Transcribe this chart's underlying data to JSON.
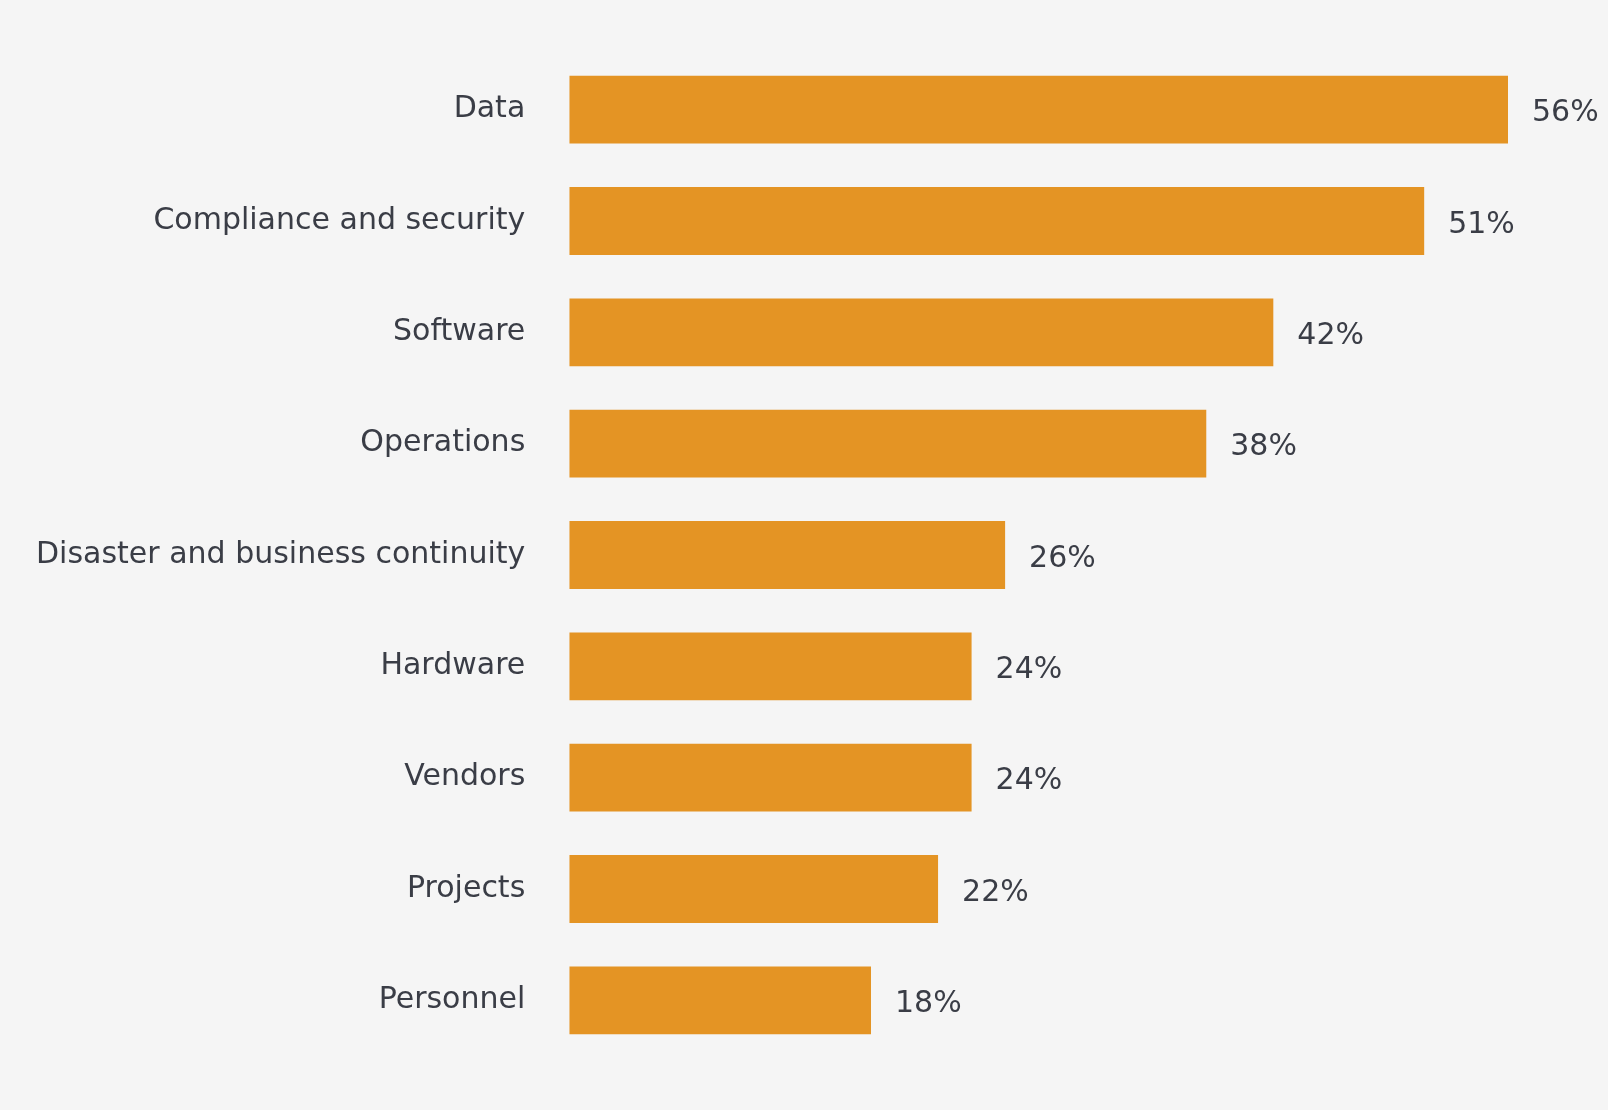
{
  "chart_data": {
    "type": "bar",
    "orientation": "horizontal",
    "categories": [
      "Data",
      "Compliance and security",
      "Software",
      "Operations",
      "Disaster and business continuity",
      "Hardware",
      "Vendors",
      "Projects",
      "Personnel"
    ],
    "values": [
      56,
      51,
      42,
      38,
      26,
      24,
      24,
      22,
      18
    ],
    "value_labels": [
      "56%",
      "51%",
      "42%",
      "38%",
      "26%",
      "24%",
      "24%",
      "22%",
      "18%"
    ],
    "color": "#e49424",
    "xlim": [
      0,
      56
    ],
    "legend": false,
    "tick_labels": "y"
  }
}
